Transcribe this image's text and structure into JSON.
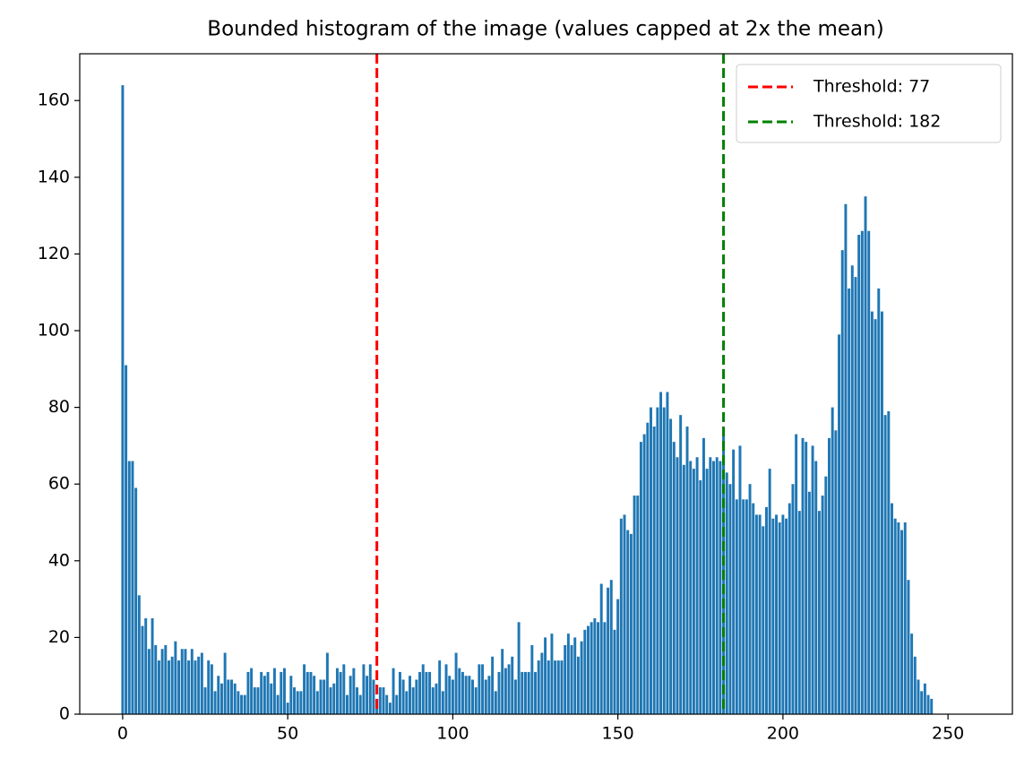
{
  "chart_data": {
    "type": "bar",
    "title": "Bounded histogram of the image (values capped at 2x the mean)",
    "color": "#1f77b4",
    "x": [
      0,
      1,
      2,
      3,
      4,
      5,
      6,
      7,
      8,
      9,
      10,
      11,
      12,
      13,
      14,
      15,
      16,
      17,
      18,
      19,
      20,
      21,
      22,
      23,
      24,
      25,
      26,
      27,
      28,
      29,
      30,
      31,
      32,
      33,
      34,
      35,
      36,
      37,
      38,
      39,
      40,
      41,
      42,
      43,
      44,
      45,
      46,
      47,
      48,
      49,
      50,
      51,
      52,
      53,
      54,
      55,
      56,
      57,
      58,
      59,
      60,
      61,
      62,
      63,
      64,
      65,
      66,
      67,
      68,
      69,
      70,
      71,
      72,
      73,
      74,
      75,
      76,
      77,
      78,
      79,
      80,
      81,
      82,
      83,
      84,
      85,
      86,
      87,
      88,
      89,
      90,
      91,
      92,
      93,
      94,
      95,
      96,
      97,
      98,
      99,
      100,
      101,
      102,
      103,
      104,
      105,
      106,
      107,
      108,
      109,
      110,
      111,
      112,
      113,
      114,
      115,
      116,
      117,
      118,
      119,
      120,
      121,
      122,
      123,
      124,
      125,
      126,
      127,
      128,
      129,
      130,
      131,
      132,
      133,
      134,
      135,
      136,
      137,
      138,
      139,
      140,
      141,
      142,
      143,
      144,
      145,
      146,
      147,
      148,
      149,
      150,
      151,
      152,
      153,
      154,
      155,
      156,
      157,
      158,
      159,
      160,
      161,
      162,
      163,
      164,
      165,
      166,
      167,
      168,
      169,
      170,
      171,
      172,
      173,
      174,
      175,
      176,
      177,
      178,
      179,
      180,
      181,
      182,
      183,
      184,
      185,
      186,
      187,
      188,
      189,
      190,
      191,
      192,
      193,
      194,
      195,
      196,
      197,
      198,
      199,
      200,
      201,
      202,
      203,
      204,
      205,
      206,
      207,
      208,
      209,
      210,
      211,
      212,
      213,
      214,
      215,
      216,
      217,
      218,
      219,
      220,
      221,
      222,
      223,
      224,
      225,
      226,
      227,
      228,
      229,
      230,
      231,
      232,
      233,
      234,
      235,
      236,
      237,
      238,
      239,
      240,
      241,
      242,
      243,
      244,
      245,
      246,
      247,
      248,
      249,
      250,
      251,
      252,
      253,
      254,
      255
    ],
    "values": [
      164,
      91,
      66,
      66,
      59,
      31,
      23,
      25,
      17,
      25,
      18,
      14,
      17,
      18,
      14,
      15,
      19,
      14,
      17,
      17,
      14,
      17,
      14,
      15,
      16,
      7,
      14,
      13,
      6,
      10,
      8,
      16,
      9,
      9,
      8,
      6,
      5,
      5,
      11,
      12,
      7,
      7,
      11,
      10,
      11,
      8,
      12,
      5,
      11,
      12,
      3,
      10,
      7,
      6,
      6,
      13,
      11,
      11,
      10,
      6,
      9,
      9,
      16,
      7,
      8,
      12,
      11,
      13,
      5,
      10,
      12,
      7,
      5,
      13,
      10,
      13,
      9,
      4,
      7,
      7,
      5,
      3,
      12,
      5,
      11,
      9,
      6,
      10,
      7,
      9,
      11,
      13,
      11,
      11,
      7,
      8,
      14,
      6,
      13,
      10,
      9,
      16,
      12,
      11,
      10,
      10,
      9,
      7,
      13,
      13,
      9,
      10,
      15,
      6,
      11,
      17,
      12,
      13,
      15,
      9,
      24,
      11,
      11,
      11,
      18,
      11,
      14,
      16,
      20,
      14,
      21,
      14,
      14,
      14,
      18,
      21,
      18,
      20,
      15,
      19,
      22,
      23,
      24,
      25,
      24,
      34,
      24,
      33,
      35,
      22,
      30,
      51,
      52,
      48,
      47,
      57,
      57,
      71,
      73,
      76,
      80,
      75,
      80,
      84,
      80,
      84,
      77,
      71,
      67,
      78,
      65,
      75,
      66,
      64,
      67,
      61,
      72,
      64,
      67,
      66,
      67,
      66,
      73,
      63,
      60,
      69,
      56,
      70,
      56,
      56,
      60,
      55,
      52,
      52,
      49,
      54,
      64,
      51,
      52,
      50,
      52,
      51,
      55,
      60,
      73,
      53,
      72,
      71,
      58,
      70,
      66,
      53,
      57,
      62,
      72,
      80,
      74,
      99,
      121,
      133,
      111,
      117,
      114,
      125,
      126,
      135,
      126,
      105,
      103,
      111,
      105,
      78,
      79,
      55,
      51,
      50,
      48,
      50,
      35,
      21,
      15,
      9,
      6,
      8,
      5,
      4,
      0,
      0,
      0,
      0,
      0,
      0,
      0,
      0,
      0,
      0
    ],
    "xlim": [
      -13,
      269.5
    ],
    "ylim": [
      0,
      172.2
    ],
    "xticks": [
      0,
      50,
      100,
      150,
      200,
      250
    ],
    "yticks": [
      0,
      20,
      40,
      60,
      80,
      100,
      120,
      140,
      160
    ],
    "thresholds": [
      {
        "label": "Threshold: 77",
        "value": 77,
        "color": "#ff0000"
      },
      {
        "label": "Threshold: 182",
        "value": 182,
        "color": "#008000"
      }
    ],
    "legend": "upper right"
  }
}
